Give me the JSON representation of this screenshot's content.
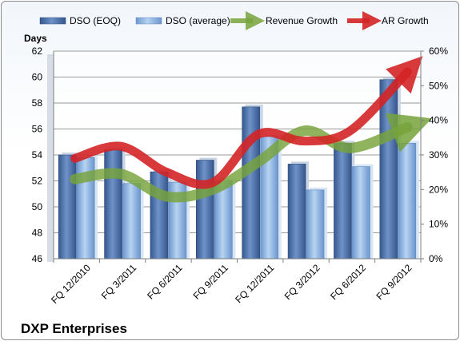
{
  "chart_data": {
    "type": "bar",
    "title": "",
    "company": "DXP Enterprises",
    "y_left_label": "Days",
    "y_left_lim": [
      46,
      62
    ],
    "y_left_ticks": [
      "46",
      "48",
      "50",
      "52",
      "54",
      "56",
      "58",
      "60",
      "62"
    ],
    "y_right_lim": [
      0,
      60
    ],
    "y_right_ticks": [
      "0%",
      "10%",
      "20%",
      "30%",
      "40%",
      "50%",
      "60%"
    ],
    "categories": [
      "FQ 12/2010",
      "FQ 3/2011",
      "FQ 6/2011",
      "FQ 9/2011",
      "FQ 12/2011",
      "FQ 3/2012",
      "FQ 6/2012",
      "FQ 9/2012"
    ],
    "series": [
      {
        "name": "DSO (EOQ)",
        "type": "bar",
        "axis": "left",
        "color": "#4a6ea8",
        "values": [
          54.0,
          54.4,
          52.7,
          53.6,
          57.7,
          53.3,
          54.9,
          59.8
        ]
      },
      {
        "name": "DSO (average)",
        "type": "bar",
        "axis": "left",
        "color": "#8db4e2",
        "values": [
          53.8,
          51.8,
          51.9,
          52.0,
          55.4,
          51.3,
          53.1,
          54.9
        ]
      },
      {
        "name": "Revenue Growth",
        "type": "line",
        "axis": "right",
        "unit": "%",
        "color": "#77a33b",
        "values": [
          23,
          24.5,
          18,
          20,
          28,
          37,
          32,
          38
        ]
      },
      {
        "name": "AR Growth",
        "type": "line",
        "axis": "right",
        "unit": "%",
        "color": "#d42326",
        "values": [
          29,
          32.5,
          25,
          22,
          36,
          34,
          37,
          54
        ]
      }
    ],
    "legend_position": "top",
    "grid": "horizontal"
  }
}
